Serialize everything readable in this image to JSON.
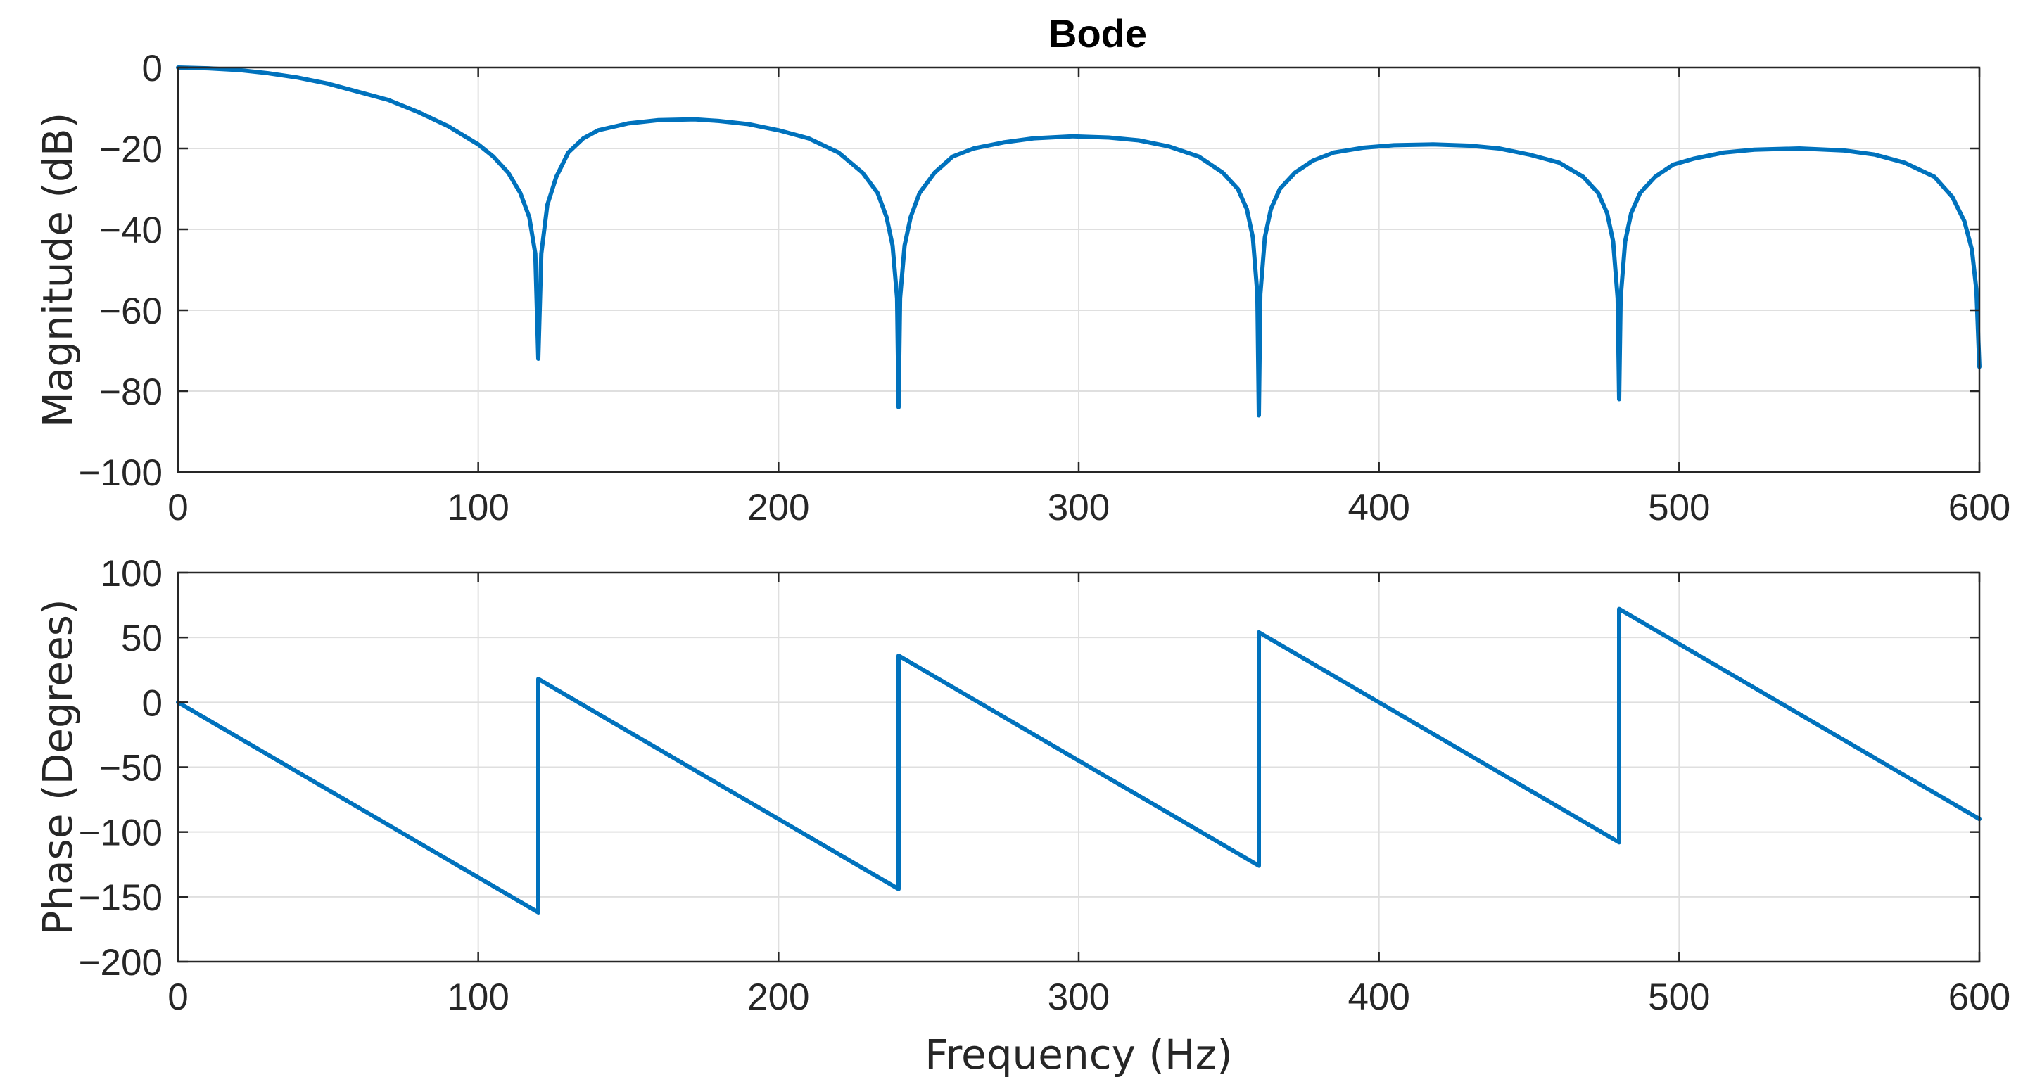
{
  "chart_data": [
    {
      "type": "line",
      "title": "Bode",
      "xlabel": "",
      "ylabel": "Magnitude (dB)",
      "xlim": [
        0,
        600
      ],
      "ylim": [
        -100,
        0
      ],
      "xticks": [
        "0",
        "100",
        "200",
        "300",
        "400",
        "500",
        "600"
      ],
      "yticks": [
        "0",
        "−20",
        "−40",
        "−60",
        "−80",
        "−100"
      ],
      "grid": true,
      "color": "#0072BD",
      "series": [
        {
          "name": "Magnitude",
          "x": [
            0,
            10,
            20,
            30,
            40,
            50,
            60,
            70,
            80,
            90,
            100,
            105,
            110,
            114,
            117,
            119,
            120,
            121,
            123,
            126,
            130,
            135,
            140,
            150,
            160,
            172,
            180,
            190,
            200,
            210,
            220,
            228,
            233,
            236,
            238,
            239.5,
            240,
            240.5,
            242,
            244,
            247,
            252,
            258,
            265,
            275,
            285,
            298,
            310,
            320,
            330,
            340,
            348,
            353,
            356,
            358,
            359.5,
            360,
            360.5,
            362,
            364,
            367,
            372,
            378,
            385,
            395,
            405,
            418,
            430,
            440,
            450,
            460,
            468,
            473,
            476,
            478,
            479.5,
            480,
            480.5,
            482,
            484,
            487,
            492,
            498,
            505,
            515,
            525,
            540,
            555,
            565,
            575,
            585,
            591,
            595,
            597.5,
            599,
            600
          ],
          "values": [
            0,
            -0.2,
            -0.6,
            -1.4,
            -2.5,
            -4,
            -6,
            -8,
            -11,
            -14.5,
            -19,
            -22,
            -26,
            -31,
            -37,
            -46,
            -72,
            -46,
            -34,
            -27,
            -21,
            -17.5,
            -15.5,
            -13.8,
            -13,
            -12.8,
            -13.2,
            -14,
            -15.5,
            -17.5,
            -21,
            -26,
            -31,
            -37,
            -44,
            -57,
            -84,
            -57,
            -44,
            -37,
            -31,
            -26,
            -22,
            -20,
            -18.5,
            -17.5,
            -17,
            -17.3,
            -18,
            -19.5,
            -22,
            -26,
            -30,
            -35,
            -42,
            -56,
            -86,
            -56,
            -42,
            -35,
            -30,
            -26,
            -23,
            -21,
            -19.8,
            -19.2,
            -19,
            -19.3,
            -20,
            -21.5,
            -23.5,
            -27,
            -31,
            -36,
            -43,
            -57,
            -82,
            -57,
            -43,
            -36,
            -31,
            -27,
            -24,
            -22.5,
            -21,
            -20.3,
            -20,
            -20.5,
            -21.5,
            -23.5,
            -27,
            -32,
            -38,
            -45,
            -55,
            -74
          ]
        }
      ]
    },
    {
      "type": "line",
      "title": "",
      "xlabel": "Frequency (Hz)",
      "ylabel": "Phase (Degrees)",
      "xlim": [
        0,
        600
      ],
      "ylim": [
        -200,
        100
      ],
      "xticks": [
        "0",
        "100",
        "200",
        "300",
        "400",
        "500",
        "600"
      ],
      "yticks": [
        "100",
        "50",
        "0",
        "−50",
        "−100",
        "−150",
        "−200"
      ],
      "grid": true,
      "color": "#0072BD",
      "series": [
        {
          "name": "Phase",
          "x": [
            0,
            120,
            120,
            240,
            240,
            360,
            360,
            480,
            480,
            600
          ],
          "values": [
            0,
            -162,
            18,
            -144,
            36,
            -126,
            54,
            -108,
            72,
            -90
          ]
        }
      ]
    }
  ]
}
